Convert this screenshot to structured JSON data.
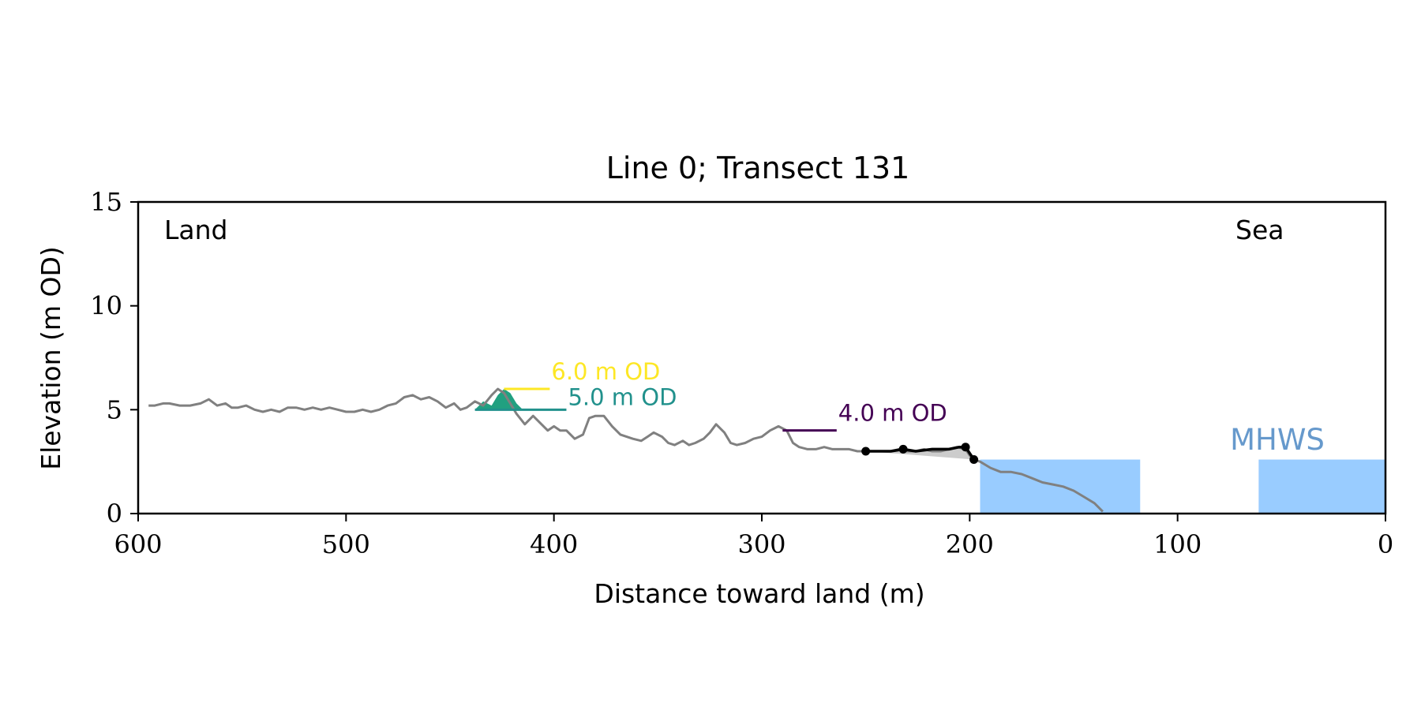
{
  "chart_data": {
    "type": "line",
    "title": "Line 0; Transect 131",
    "xlabel": "Distance toward land (m)",
    "ylabel": "Elevation (m OD)",
    "xlim": [
      600,
      0
    ],
    "ylim": [
      0,
      15
    ],
    "x_ticks": [
      600,
      500,
      400,
      300,
      200,
      100,
      0
    ],
    "y_ticks": [
      0,
      5,
      10,
      15
    ],
    "grid": false,
    "annotations": {
      "land": "Land",
      "sea": "Sea",
      "mhws": "MHWS"
    },
    "colors": {
      "profile": "#808080",
      "mhws": "#99ccff",
      "mhws_label": "#6699cc",
      "level_6": "#fde725",
      "level_5": "#21918c",
      "level_4": "#440154",
      "dune_fill": "#21a080",
      "highlight": "#000000",
      "highlight_fill": "#cccccc"
    },
    "profile": {
      "x": [
        595,
        592,
        588,
        585,
        580,
        575,
        570,
        566,
        562,
        558,
        555,
        552,
        548,
        544,
        540,
        536,
        532,
        528,
        524,
        520,
        516,
        512,
        508,
        504,
        500,
        496,
        492,
        488,
        484,
        480,
        476,
        472,
        468,
        464,
        460,
        456,
        452,
        448,
        445,
        442,
        438,
        434,
        430,
        427,
        424,
        421,
        418,
        414,
        410,
        406,
        403,
        400,
        397,
        394,
        390,
        386,
        383,
        380,
        376,
        372,
        368,
        365,
        362,
        358,
        355,
        352,
        348,
        345,
        342,
        338,
        335,
        332,
        328,
        325,
        322,
        318,
        315,
        312,
        308,
        304,
        300,
        296,
        292,
        288,
        285,
        282,
        278,
        274,
        270,
        266,
        262,
        258,
        254,
        250,
        246,
        242,
        238,
        234,
        230,
        226,
        222,
        218,
        214,
        210,
        206,
        202,
        200,
        198,
        195,
        190,
        185,
        180,
        175,
        170,
        165,
        160,
        155,
        150,
        145,
        140,
        136
      ],
      "y": [
        5.2,
        5.2,
        5.3,
        5.3,
        5.2,
        5.2,
        5.3,
        5.5,
        5.2,
        5.3,
        5.1,
        5.1,
        5.2,
        5.0,
        4.9,
        5.0,
        4.9,
        5.1,
        5.1,
        5.0,
        5.1,
        5.0,
        5.1,
        5.0,
        4.9,
        4.9,
        5.0,
        4.9,
        5.0,
        5.2,
        5.3,
        5.6,
        5.7,
        5.5,
        5.6,
        5.4,
        5.1,
        5.3,
        5.0,
        5.1,
        5.4,
        5.2,
        5.7,
        6.0,
        5.8,
        5.3,
        4.8,
        4.3,
        4.7,
        4.3,
        4.0,
        4.2,
        4.0,
        4.0,
        3.6,
        3.8,
        4.6,
        4.7,
        4.7,
        4.2,
        3.8,
        3.7,
        3.6,
        3.5,
        3.7,
        3.9,
        3.7,
        3.4,
        3.3,
        3.5,
        3.3,
        3.4,
        3.6,
        3.9,
        4.3,
        3.9,
        3.4,
        3.3,
        3.4,
        3.6,
        3.7,
        4.0,
        4.2,
        4.0,
        3.4,
        3.2,
        3.1,
        3.1,
        3.2,
        3.1,
        3.1,
        3.1,
        3.0,
        3.0,
        3.0,
        3.0,
        3.0,
        3.1,
        3.0,
        3.0,
        3.1,
        3.0,
        3.0,
        3.1,
        3.2,
        3.1,
        2.8,
        2.6,
        2.5,
        2.2,
        2.0,
        2.0,
        1.9,
        1.7,
        1.5,
        1.4,
        1.3,
        1.1,
        0.8,
        0.5,
        0.1
      ]
    },
    "dune_polygon": {
      "x": [
        438,
        434,
        430,
        427,
        424,
        421,
        418,
        415
      ],
      "y": [
        5.0,
        5.4,
        5.2,
        5.7,
        6.0,
        5.8,
        5.3,
        5.0
      ]
    },
    "levels": [
      {
        "label": "6.0 m OD",
        "y": 6.0,
        "x_start": 424,
        "x_end": 402
      },
      {
        "label": "5.0 m OD",
        "y": 5.0,
        "x_start": 438,
        "x_end": 394
      },
      {
        "label": "4.0 m OD",
        "y": 4.0,
        "x_start": 290,
        "x_end": 264
      }
    ],
    "highlight": {
      "x": [
        250,
        238,
        232,
        226,
        218,
        210,
        205,
        202,
        198
      ],
      "y": [
        3.0,
        3.0,
        3.1,
        3.0,
        3.1,
        3.1,
        3.2,
        3.2,
        2.6
      ],
      "markers_x": [
        250,
        232,
        202,
        198
      ],
      "markers_y": [
        3.0,
        3.1,
        3.2,
        2.6
      ]
    },
    "mhws_rects": [
      {
        "x0": 195,
        "x1": 118,
        "y0": 0,
        "y1": 2.6
      },
      {
        "x0": 61,
        "x1": 0,
        "y0": 0,
        "y1": 2.6
      }
    ]
  }
}
